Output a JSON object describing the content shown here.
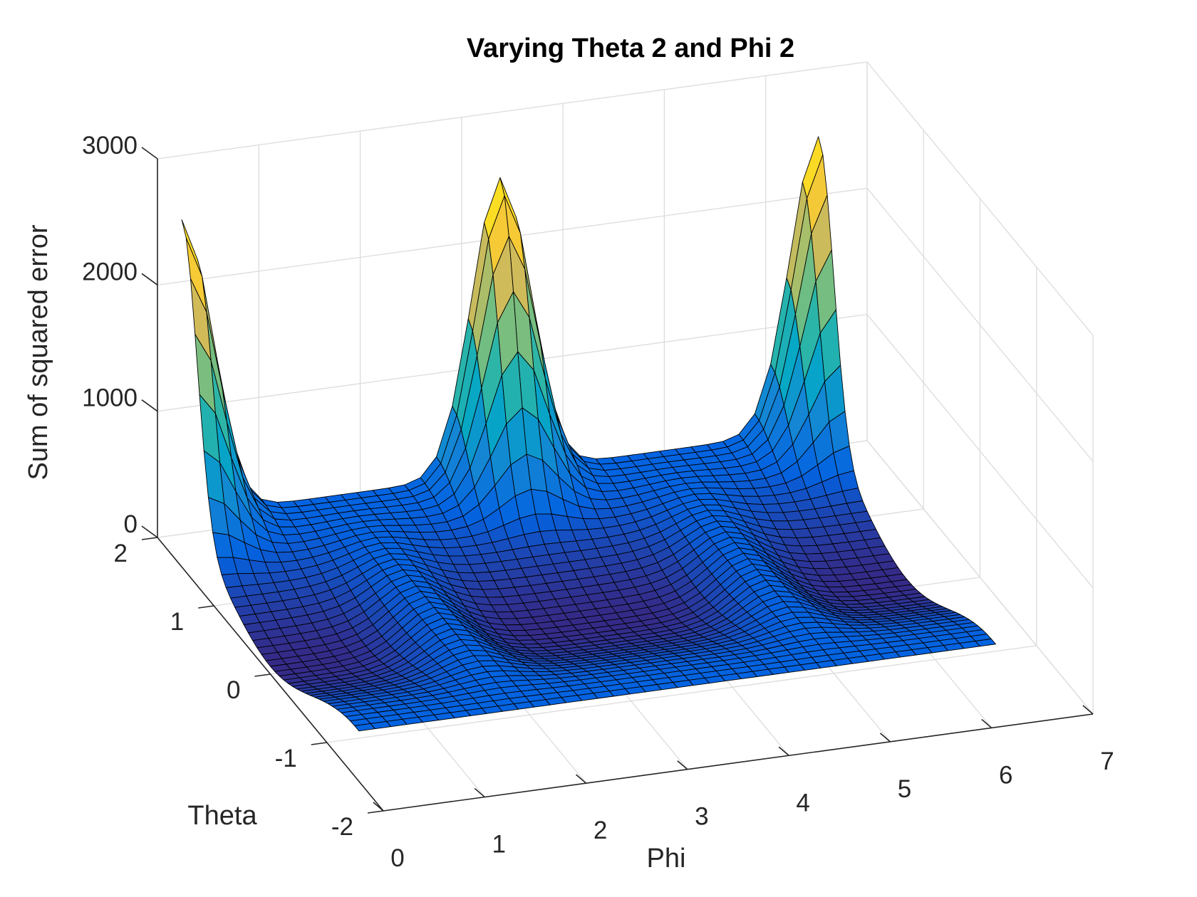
{
  "chart_data": {
    "type": "surface",
    "title": "Varying Theta 2 and Phi 2",
    "xlabel": "Phi",
    "ylabel": "Theta",
    "zlabel": "Sum of squared error",
    "xlim": [
      0,
      7
    ],
    "ylim": [
      -2,
      2
    ],
    "zlim": [
      0,
      3000
    ],
    "xticks": [
      0,
      1,
      2,
      3,
      4,
      5,
      6,
      7
    ],
    "yticks": [
      -2,
      -1,
      0,
      1,
      2
    ],
    "zticks": [
      0,
      1000,
      2000,
      3000
    ],
    "grid": true,
    "colormap": "parula",
    "colormap_colors": [
      "#352a87",
      "#0363e1",
      "#1485d4",
      "#06a7c6",
      "#38b99e",
      "#92bf73",
      "#d9ba56",
      "#fcce2e",
      "#f9fb0e"
    ],
    "surface": {
      "phi_range": [
        0.0,
        6.28
      ],
      "theta_range": [
        -1.57,
        1.57
      ],
      "peaks": [
        {
          "phi": 0.0,
          "theta": 1.57,
          "value": 2750
        },
        {
          "phi": 3.14,
          "theta": 1.57,
          "value": 2740
        },
        {
          "phi": 6.28,
          "theta": 1.57,
          "value": 2720
        }
      ],
      "minima": [
        {
          "phi": 1.57,
          "theta": 0.0,
          "value": 90
        },
        {
          "phi": 4.71,
          "theta": 0.0,
          "value": 90
        }
      ],
      "flat_value": 400
    }
  }
}
